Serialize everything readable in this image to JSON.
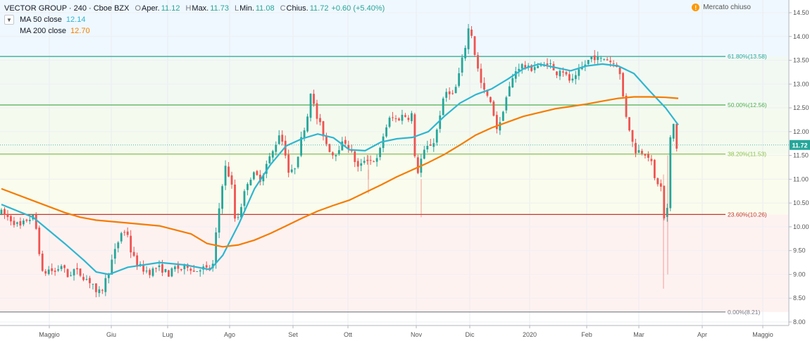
{
  "header": {
    "symbol": "VECTOR GROUP · 240 · Cboe BZX",
    "ohlc": [
      {
        "k": "O",
        "label": "Aper.",
        "value": "11.12"
      },
      {
        "k": "H",
        "label": "Max.",
        "value": "11.73"
      },
      {
        "k": "L",
        "label": "Min.",
        "value": "11.08"
      },
      {
        "k": "C",
        "label": "Chius.",
        "value": "11.72"
      }
    ],
    "change": "+0.60 (+5.40%)",
    "ma50_label": "MA 50 close",
    "ma50_value": "12.14",
    "ma200_label": "MA 200 close",
    "ma200_value": "12.70",
    "collapse_icon": "chevron-down-icon",
    "market_status": "Mercato chiuso",
    "status_icon": "warning-icon"
  },
  "colors": {
    "up": "#26a69a",
    "down": "#ef5350",
    "ma50": "#2eb6d0",
    "ma200": "#f57c00"
  },
  "chart_data": {
    "type": "candlestick",
    "title": "VECTOR GROUP · 240 · Cboe BZX",
    "x_tick_labels": [
      "Maggio",
      "Giu",
      "Lug",
      "Ago",
      "Set",
      "Ott",
      "Nov",
      "Dic",
      "2020",
      "Feb",
      "Mar",
      "Apr",
      "Maggio"
    ],
    "y_tick_labels": [
      "8.00",
      "8.50",
      "9.00",
      "9.50",
      "10.00",
      "10.50",
      "11.00",
      "11.50",
      "12.00",
      "12.50",
      "13.00",
      "13.50",
      "14.00",
      "14.50"
    ],
    "ylim": [
      8.0,
      14.5
    ],
    "last_price": "11.72",
    "fib_levels": [
      {
        "label": "0.00%(8.21)",
        "value": 8.21,
        "color": "#787b86"
      },
      {
        "label": "23.60%(10.26)",
        "value": 10.26,
        "color": "#c0392b"
      },
      {
        "label": "38.20%(11.53)",
        "value": 11.53,
        "color": "#8bc34a"
      },
      {
        "label": "50.00%(12.56)",
        "value": 12.56,
        "color": "#4caf50"
      },
      {
        "label": "61.80%(13.58)",
        "value": 13.58,
        "color": "#26a69a"
      }
    ],
    "price_path": [
      [
        0,
        10.3
      ],
      [
        2,
        10.2
      ],
      [
        4,
        10.1
      ],
      [
        6,
        10.0
      ],
      [
        8,
        10.15
      ],
      [
        10,
        10.2
      ],
      [
        11,
        9.95
      ],
      [
        13,
        9.0
      ],
      [
        15,
        9.1
      ],
      [
        17,
        9.05
      ],
      [
        19,
        9.2
      ],
      [
        21,
        8.95
      ],
      [
        23,
        9.1
      ],
      [
        25,
        9.0
      ],
      [
        27,
        8.9
      ],
      [
        29,
        8.8
      ],
      [
        30,
        8.55
      ],
      [
        32,
        8.7
      ],
      [
        34,
        9.1
      ],
      [
        36,
        9.5
      ],
      [
        38,
        9.9
      ],
      [
        40,
        9.85
      ],
      [
        41,
        9.45
      ],
      [
        43,
        9.2
      ],
      [
        45,
        9.1
      ],
      [
        47,
        9.05
      ],
      [
        49,
        9.15
      ],
      [
        51,
        9.1
      ],
      [
        53,
        9.0
      ],
      [
        55,
        9.15
      ],
      [
        57,
        9.1
      ],
      [
        59,
        9.2
      ],
      [
        61,
        9.05
      ],
      [
        63,
        9.15
      ],
      [
        65,
        9.1
      ],
      [
        67,
        9.2
      ],
      [
        68,
        9.95
      ],
      [
        70,
        11.0
      ],
      [
        71,
        11.3
      ],
      [
        73,
        10.8
      ],
      [
        74,
        10.05
      ],
      [
        76,
        10.5
      ],
      [
        78,
        11.0
      ],
      [
        80,
        11.1
      ],
      [
        82,
        11.0
      ],
      [
        84,
        11.35
      ],
      [
        86,
        11.6
      ],
      [
        88,
        12.0
      ],
      [
        90,
        11.5
      ],
      [
        91,
        11.05
      ],
      [
        93,
        11.3
      ],
      [
        95,
        11.9
      ],
      [
        97,
        12.4
      ],
      [
        98,
        13.0
      ],
      [
        99,
        12.4
      ],
      [
        101,
        12.1
      ],
      [
        103,
        11.7
      ],
      [
        105,
        11.5
      ],
      [
        107,
        11.7
      ],
      [
        109,
        11.8
      ],
      [
        111,
        11.5
      ],
      [
        113,
        11.2
      ],
      [
        115,
        11.45
      ],
      [
        117,
        11.4
      ],
      [
        119,
        11.4
      ],
      [
        121,
        12.0
      ],
      [
        123,
        12.3
      ],
      [
        125,
        12.25
      ],
      [
        127,
        12.35
      ],
      [
        129,
        12.3
      ],
      [
        130,
        12.4
      ],
      [
        131,
        11.0
      ],
      [
        133,
        11.5
      ],
      [
        135,
        11.7
      ],
      [
        137,
        11.8
      ],
      [
        139,
        12.5
      ],
      [
        141,
        12.9
      ],
      [
        143,
        12.75
      ],
      [
        145,
        13.3
      ],
      [
        147,
        13.9
      ],
      [
        148,
        14.3
      ],
      [
        149,
        13.9
      ],
      [
        150,
        13.5
      ],
      [
        152,
        12.9
      ],
      [
        154,
        12.7
      ],
      [
        156,
        12.3
      ],
      [
        157,
        11.95
      ],
      [
        159,
        12.6
      ],
      [
        161,
        13.0
      ],
      [
        163,
        13.35
      ],
      [
        165,
        13.4
      ],
      [
        167,
        13.3
      ],
      [
        169,
        13.4
      ],
      [
        171,
        13.35
      ],
      [
        173,
        13.5
      ],
      [
        175,
        13.2
      ],
      [
        177,
        13.35
      ],
      [
        179,
        13.1
      ],
      [
        181,
        13.05
      ],
      [
        183,
        13.3
      ],
      [
        185,
        13.45
      ],
      [
        187,
        13.6
      ],
      [
        189,
        13.5
      ],
      [
        191,
        13.55
      ],
      [
        193,
        13.45
      ],
      [
        195,
        13.4
      ],
      [
        196,
        13.0
      ],
      [
        197,
        12.5
      ],
      [
        198,
        12.2
      ],
      [
        199,
        11.95
      ],
      [
        200,
        11.6
      ],
      [
        202,
        11.6
      ],
      [
        204,
        11.55
      ],
      [
        205,
        11.45
      ],
      [
        206,
        11.2
      ],
      [
        207,
        10.8
      ],
      [
        208,
        11.05
      ],
      [
        209,
        10.6
      ],
      [
        210,
        9.75
      ],
      [
        211,
        11.0
      ],
      [
        212,
        12.7
      ],
      [
        213,
        11.6
      ],
      [
        214,
        11.72
      ]
    ],
    "series": [
      {
        "name": "MA 50 close",
        "x": [
          0,
          10,
          20,
          26,
          30,
          34,
          40,
          50,
          58,
          66,
          70,
          75,
          80,
          85,
          90,
          95,
          100,
          105,
          110,
          115,
          120,
          125,
          130,
          135,
          140,
          145,
          150,
          155,
          160,
          165,
          170,
          175,
          180,
          185,
          190,
          195,
          200,
          205,
          210,
          214
        ],
        "y": [
          10.47,
          10.2,
          9.65,
          9.3,
          9.05,
          9.0,
          9.15,
          9.25,
          9.2,
          9.1,
          9.4,
          10.05,
          10.8,
          11.3,
          11.7,
          11.85,
          11.95,
          11.87,
          11.62,
          11.6,
          11.78,
          11.85,
          11.88,
          12.0,
          12.32,
          12.6,
          12.78,
          12.9,
          13.1,
          13.32,
          13.42,
          13.35,
          13.28,
          13.38,
          13.42,
          13.38,
          13.22,
          12.85,
          12.5,
          12.14
        ]
      },
      {
        "name": "MA 200 close",
        "x": [
          0,
          10,
          20,
          25,
          30,
          40,
          50,
          60,
          65,
          70,
          75,
          80,
          85,
          90,
          95,
          100,
          105,
          110,
          115,
          120,
          125,
          130,
          135,
          140,
          145,
          150,
          155,
          160,
          165,
          170,
          175,
          180,
          185,
          190,
          195,
          200,
          205,
          210,
          214
        ],
        "y": [
          10.8,
          10.55,
          10.3,
          10.2,
          10.14,
          10.08,
          10.02,
          9.85,
          9.65,
          9.58,
          9.62,
          9.72,
          9.86,
          10.02,
          10.18,
          10.33,
          10.45,
          10.56,
          10.72,
          10.88,
          11.05,
          11.2,
          11.35,
          11.52,
          11.72,
          11.93,
          12.08,
          12.2,
          12.32,
          12.4,
          12.48,
          12.53,
          12.58,
          12.64,
          12.7,
          12.73,
          12.73,
          12.72,
          12.7
        ]
      }
    ]
  }
}
